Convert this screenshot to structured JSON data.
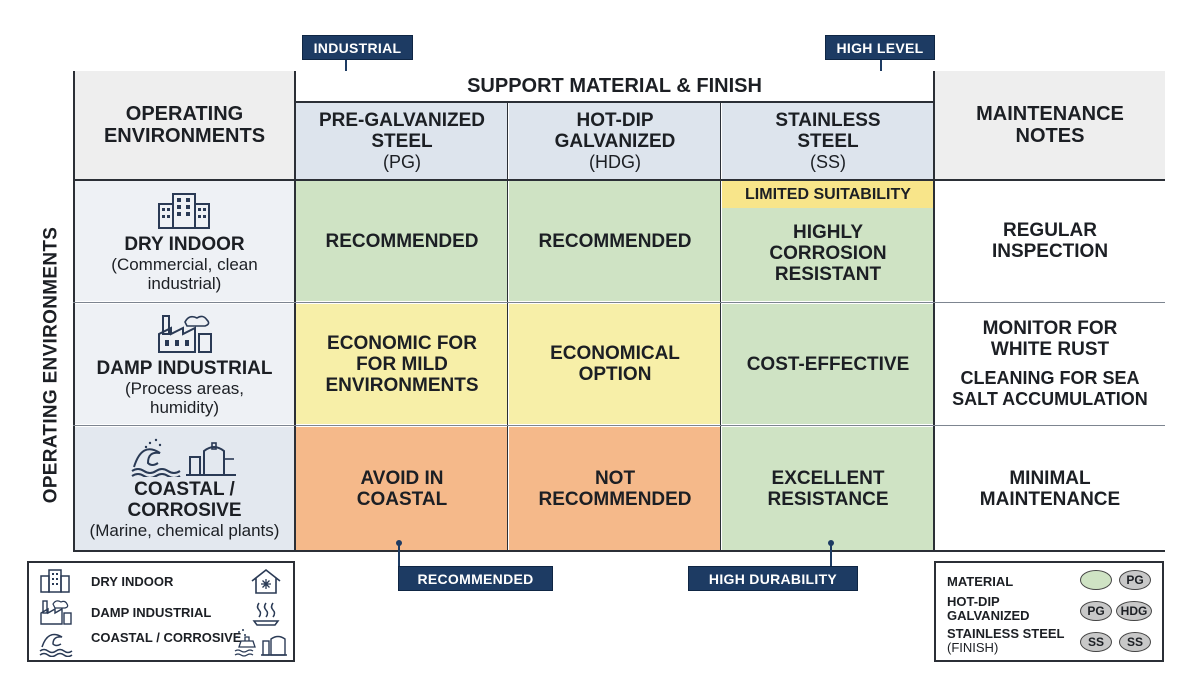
{
  "tags": {
    "industrial": "INDUSTRIAL",
    "high_level": "HIGH LEVEL",
    "recommended": "RECOMMENDED",
    "high_durability": "HIGH DURABILITY"
  },
  "header": {
    "operating_environments": "OPERATING ENVIRONMENTS",
    "support_material_finish": "SUPPORT MATERIAL & FINISH",
    "maintenance_notes": "MAINTENANCE NOTES",
    "columns": [
      {
        "title": "PRE-GALVANIZED STEEL",
        "code": "(PG)"
      },
      {
        "title": "HOT-DIP GALVANIZED",
        "code": "(HDG)"
      },
      {
        "title": "STAINLESS STEEL",
        "code": "(SS)"
      }
    ]
  },
  "side_label": "OPERATING ENVIRONMENTS",
  "rows": [
    {
      "title": "DRY INDOOR",
      "subtitle": "(Commercial, clean industrial)",
      "icon": "office-building-icon",
      "cells": [
        "RECOMMENDED",
        "RECOMMENDED",
        "HIGHLY CORROSION RESISTANT"
      ],
      "banner": "LIMITED SUITABILITY",
      "notes": [
        "REGULAR INSPECTION"
      ]
    },
    {
      "title": "DAMP INDUSTRIAL",
      "subtitle": "(Process areas, humidity)",
      "icon": "factory-icon",
      "cells": [
        "ECONOMIC FOR FOR MILD ENVIRONMENTS",
        "ECONOMICAL OPTION",
        "COST-EFFECTIVE"
      ],
      "notes": [
        "MONITOR FOR WHITE RUST",
        "CLEANING FOR SEA SALT ACCUMULATION"
      ]
    },
    {
      "title": "COASTAL / CORROSIVE",
      "subtitle": "(Marine, chemical plants)",
      "icon": "wave-tank-icon",
      "cells": [
        "AVOID IN COASTAL",
        "NOT RECOMMENDED",
        "EXCELLENT RESISTANCE"
      ],
      "notes": [
        "MINIMAL MAINTENANCE"
      ]
    }
  ],
  "cell_colors": {
    "green": "#cfe3c4",
    "yellow": "#f7efa8",
    "orange": "#f5b98a",
    "banner": "#f8e58a",
    "header_blue": "#dde4ed",
    "tag_navy": "#1d3b63"
  },
  "legend_left": {
    "items": [
      {
        "label": "DRY INDOOR",
        "icon": "office-building-icon",
        "alt_icon": "house-snowflake-icon"
      },
      {
        "label": "DAMP INDUSTRIAL",
        "icon": "factory-icon",
        "alt_icon": "steam-icon"
      },
      {
        "label": "COASTAL / CORROSIVE",
        "icon": "wave-icon",
        "alt_icon": "marine-tank-icon"
      }
    ]
  },
  "legend_right": {
    "items": [
      {
        "label": "MATERIAL",
        "badges": [
          "PG"
        ]
      },
      {
        "label": "HOT-DIP GALVANIZED",
        "badges": [
          "PG",
          "HDG"
        ]
      },
      {
        "label": "STAINLESS STEEL",
        "suffix": "(FINISH)",
        "badges": [
          "SS",
          "SS"
        ]
      }
    ]
  }
}
